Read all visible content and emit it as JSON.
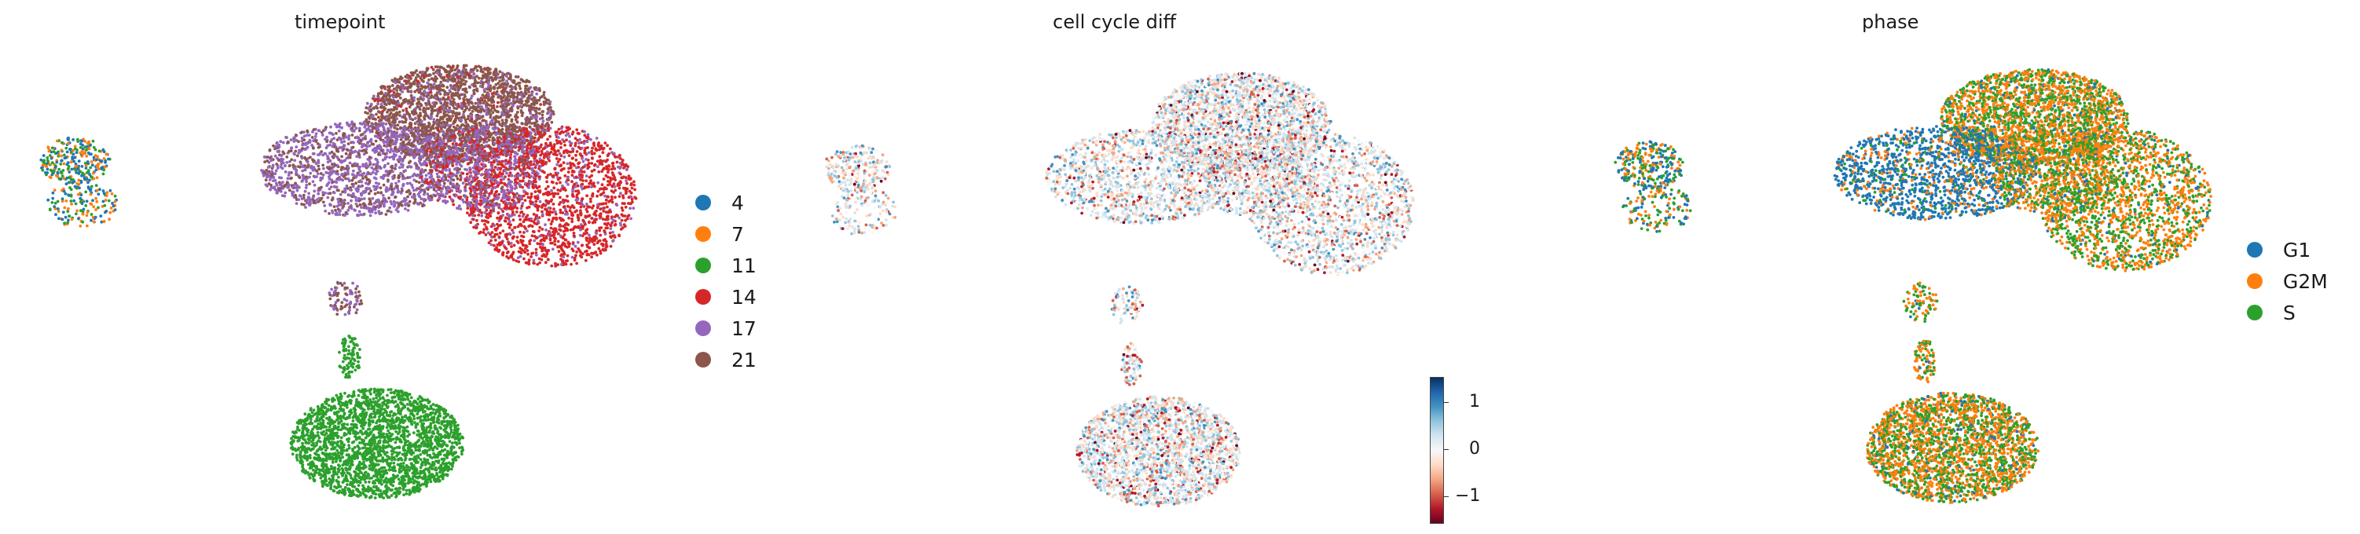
{
  "chart_data": [
    {
      "type": "scatter",
      "title": "timepoint",
      "xlabel": "",
      "ylabel": "",
      "legend_title": "",
      "legend_position": "right",
      "categories": [
        "4",
        "7",
        "11",
        "14",
        "17",
        "21"
      ],
      "colors": {
        "4": "#1f77b4",
        "7": "#ff7f0e",
        "11": "#2ca02c",
        "14": "#d62728",
        "17": "#9467bd",
        "21": "#8c564b"
      }
    },
    {
      "type": "scatter",
      "title": "cell cycle diff",
      "xlabel": "",
      "ylabel": "",
      "colorbar": {
        "ticks": [
          "1",
          "0",
          "−1"
        ],
        "tick_values": [
          1,
          0,
          -1
        ],
        "range": [
          -1.45,
          1.45
        ],
        "colormap": "RdBu"
      }
    },
    {
      "type": "scatter",
      "title": "phase",
      "xlabel": "",
      "ylabel": "",
      "legend_title": "",
      "legend_position": "right",
      "categories": [
        "G1",
        "G2M",
        "S"
      ],
      "colors": {
        "G1": "#1f77b4",
        "G2M": "#ff7f0e",
        "S": "#2ca02c"
      }
    }
  ]
}
